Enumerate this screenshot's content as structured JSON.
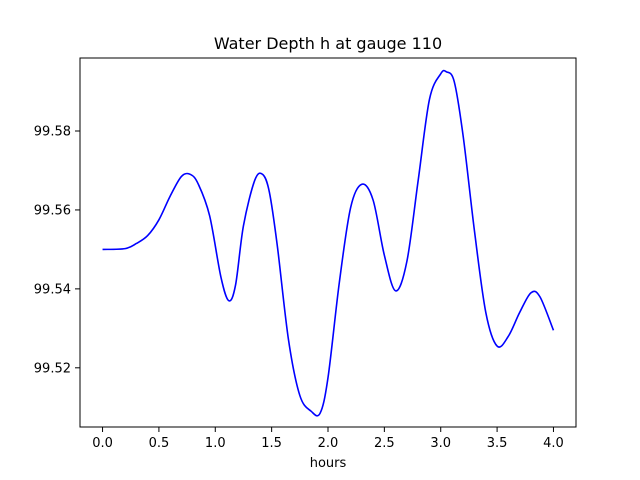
{
  "chart_data": {
    "type": "line",
    "title": "Water Depth h at gauge 110",
    "xlabel": "hours",
    "ylabel": "",
    "xlim": [
      -0.2,
      4.2
    ],
    "ylim": [
      99.505,
      99.5985
    ],
    "xticks": [
      0.0,
      0.5,
      1.0,
      1.5,
      2.0,
      2.5,
      3.0,
      3.5,
      4.0
    ],
    "xtick_labels": [
      "0.0",
      "0.5",
      "1.0",
      "1.5",
      "2.0",
      "2.5",
      "3.0",
      "3.5",
      "4.0"
    ],
    "yticks": [
      99.52,
      99.54,
      99.56,
      99.58
    ],
    "ytick_labels": [
      "99.52",
      "99.54",
      "99.56",
      "99.58"
    ],
    "grid": false,
    "series": [
      {
        "color": "#0000ff",
        "x": [
          0.0,
          0.2,
          0.3,
          0.4,
          0.5,
          0.6,
          0.7,
          0.78,
          0.85,
          0.95,
          1.05,
          1.12,
          1.18,
          1.25,
          1.35,
          1.42,
          1.48,
          1.55,
          1.65,
          1.75,
          1.85,
          1.93,
          2.0,
          2.1,
          2.2,
          2.3,
          2.4,
          2.5,
          2.6,
          2.7,
          2.8,
          2.9,
          3.0,
          3.05,
          3.12,
          3.2,
          3.3,
          3.4,
          3.5,
          3.6,
          3.7,
          3.8,
          3.88,
          4.0
        ],
        "y": [
          99.55,
          99.5502,
          99.5515,
          99.5535,
          99.5575,
          99.5635,
          99.5685,
          99.569,
          99.5665,
          99.5585,
          99.543,
          99.537,
          99.541,
          99.556,
          99.5675,
          99.569,
          99.5645,
          99.551,
          99.527,
          99.513,
          99.509,
          99.5085,
          99.5175,
          99.5415,
          99.5605,
          99.5665,
          99.5625,
          99.5485,
          99.5395,
          99.547,
          99.5675,
          99.588,
          99.5945,
          99.595,
          99.5925,
          99.5785,
          99.5545,
          99.534,
          99.5255,
          99.528,
          99.534,
          99.539,
          99.538,
          99.5295
        ]
      }
    ]
  }
}
